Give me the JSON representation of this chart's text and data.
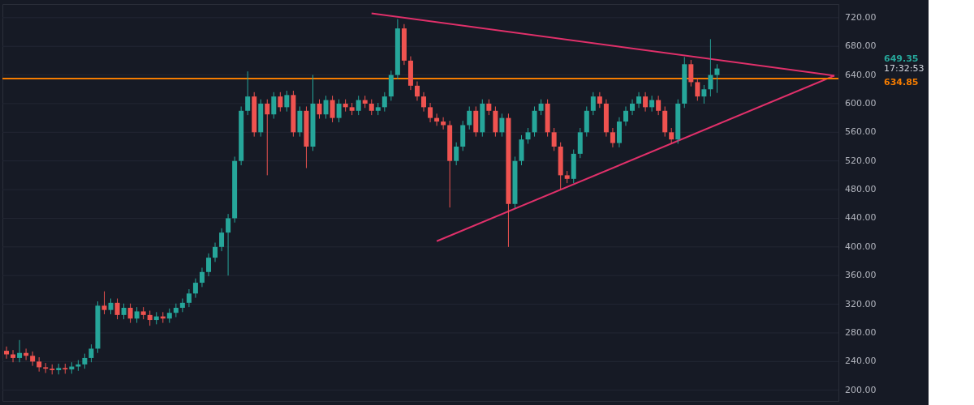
{
  "chart_data": {
    "type": "candlestick",
    "categories": [
      null,
      null,
      null,
      null,
      null,
      null,
      null,
      null,
      null,
      null,
      null,
      null,
      null,
      null,
      null,
      null,
      null,
      null,
      null,
      null,
      null,
      null,
      null,
      null,
      null,
      null,
      null,
      null,
      null,
      null,
      null,
      null,
      null,
      null,
      null,
      null,
      null,
      null,
      null,
      null,
      null,
      null,
      null,
      null,
      null,
      null,
      null,
      null,
      null,
      null,
      null,
      null,
      null,
      null,
      null,
      null,
      null,
      null,
      null,
      null,
      null,
      null,
      null,
      null,
      null,
      null,
      null,
      null,
      null,
      null,
      null,
      null,
      null,
      null,
      null,
      null,
      null,
      null,
      null,
      null,
      null,
      null,
      null,
      null,
      null,
      null,
      null,
      null,
      null,
      null,
      null,
      null,
      null,
      null,
      null,
      null,
      null,
      null,
      null,
      null,
      null,
      null,
      null,
      null,
      null,
      null,
      null,
      null,
      null,
      null,
      null,
      null,
      null,
      null,
      null,
      null,
      null,
      null,
      null,
      null,
      null,
      null,
      null,
      null,
      null,
      null,
      null,
      null
    ],
    "ohlc": [
      [
        255,
        261,
        244,
        250
      ],
      [
        250,
        256,
        239,
        245
      ],
      [
        245,
        270,
        239,
        252
      ],
      [
        252,
        258,
        242,
        248
      ],
      [
        248,
        254,
        234,
        240
      ],
      [
        240,
        246,
        226,
        232
      ],
      [
        232,
        238,
        224,
        230
      ],
      [
        230,
        236,
        222,
        228
      ],
      [
        228,
        237,
        222,
        231
      ],
      [
        231,
        237,
        223,
        229
      ],
      [
        229,
        239,
        223,
        233
      ],
      [
        233,
        242,
        227,
        236
      ],
      [
        236,
        251,
        230,
        245
      ],
      [
        245,
        264,
        239,
        258
      ],
      [
        258,
        324,
        252,
        318
      ],
      [
        318,
        338,
        306,
        312
      ],
      [
        312,
        328,
        306,
        322
      ],
      [
        322,
        328,
        299,
        305
      ],
      [
        305,
        321,
        299,
        315
      ],
      [
        315,
        321,
        294,
        300
      ],
      [
        300,
        316,
        294,
        310
      ],
      [
        310,
        316,
        299,
        305
      ],
      [
        305,
        311,
        290,
        298
      ],
      [
        298,
        309,
        292,
        303
      ],
      [
        303,
        309,
        294,
        300
      ],
      [
        300,
        314,
        294,
        308
      ],
      [
        308,
        321,
        302,
        315
      ],
      [
        315,
        328,
        309,
        322
      ],
      [
        322,
        341,
        316,
        335
      ],
      [
        335,
        356,
        329,
        350
      ],
      [
        350,
        371,
        344,
        365
      ],
      [
        365,
        391,
        359,
        385
      ],
      [
        385,
        406,
        379,
        400
      ],
      [
        400,
        426,
        394,
        420
      ],
      [
        420,
        446,
        360,
        440
      ],
      [
        440,
        526,
        434,
        520
      ],
      [
        520,
        596,
        514,
        590
      ],
      [
        590,
        645,
        584,
        610
      ],
      [
        610,
        616,
        554,
        560
      ],
      [
        560,
        606,
        554,
        600
      ],
      [
        600,
        606,
        500,
        585
      ],
      [
        585,
        616,
        579,
        610
      ],
      [
        610,
        616,
        589,
        595
      ],
      [
        595,
        618,
        589,
        612
      ],
      [
        612,
        618,
        554,
        560
      ],
      [
        560,
        596,
        554,
        590
      ],
      [
        590,
        596,
        510,
        540
      ],
      [
        540,
        640,
        534,
        600
      ],
      [
        600,
        606,
        579,
        585
      ],
      [
        585,
        611,
        579,
        605
      ],
      [
        605,
        611,
        574,
        580
      ],
      [
        580,
        606,
        574,
        600
      ],
      [
        600,
        606,
        589,
        595
      ],
      [
        595,
        601,
        584,
        590
      ],
      [
        590,
        611,
        584,
        605
      ],
      [
        605,
        611,
        594,
        600
      ],
      [
        600,
        606,
        584,
        590
      ],
      [
        590,
        601,
        584,
        595
      ],
      [
        595,
        616,
        589,
        610
      ],
      [
        610,
        646,
        604,
        640
      ],
      [
        640,
        718,
        634,
        705
      ],
      [
        705,
        711,
        654,
        660
      ],
      [
        660,
        666,
        619,
        625
      ],
      [
        625,
        631,
        604,
        610
      ],
      [
        610,
        616,
        589,
        595
      ],
      [
        595,
        601,
        574,
        580
      ],
      [
        580,
        586,
        569,
        575
      ],
      [
        575,
        581,
        564,
        570
      ],
      [
        570,
        576,
        455,
        520
      ],
      [
        520,
        546,
        514,
        540
      ],
      [
        540,
        576,
        534,
        570
      ],
      [
        570,
        596,
        564,
        590
      ],
      [
        590,
        596,
        554,
        560
      ],
      [
        560,
        606,
        554,
        600
      ],
      [
        600,
        606,
        584,
        590
      ],
      [
        590,
        596,
        554,
        560
      ],
      [
        560,
        586,
        554,
        580
      ],
      [
        580,
        586,
        400,
        460
      ],
      [
        460,
        526,
        454,
        520
      ],
      [
        520,
        556,
        514,
        550
      ],
      [
        550,
        566,
        544,
        560
      ],
      [
        560,
        596,
        554,
        590
      ],
      [
        590,
        606,
        584,
        600
      ],
      [
        600,
        606,
        554,
        560
      ],
      [
        560,
        566,
        534,
        540
      ],
      [
        540,
        546,
        480,
        500
      ],
      [
        500,
        506,
        489,
        495
      ],
      [
        495,
        536,
        489,
        530
      ],
      [
        530,
        566,
        524,
        560
      ],
      [
        560,
        596,
        554,
        590
      ],
      [
        590,
        616,
        584,
        610
      ],
      [
        610,
        616,
        594,
        600
      ],
      [
        600,
        606,
        554,
        560
      ],
      [
        560,
        566,
        539,
        545
      ],
      [
        545,
        581,
        539,
        575
      ],
      [
        575,
        596,
        569,
        590
      ],
      [
        590,
        606,
        584,
        600
      ],
      [
        600,
        616,
        594,
        610
      ],
      [
        610,
        616,
        589,
        595
      ],
      [
        595,
        611,
        589,
        605
      ],
      [
        605,
        611,
        584,
        590
      ],
      [
        590,
        596,
        554,
        560
      ],
      [
        560,
        566,
        544,
        550
      ],
      [
        550,
        606,
        544,
        600
      ],
      [
        600,
        665,
        594,
        655
      ],
      [
        655,
        661,
        624,
        630
      ],
      [
        630,
        636,
        604,
        610
      ],
      [
        610,
        626,
        600,
        620
      ],
      [
        620,
        690,
        610,
        640
      ],
      [
        640,
        655,
        615,
        649
      ],
      null,
      null,
      null,
      null,
      null,
      null,
      null,
      null,
      null,
      null,
      null,
      null,
      null,
      null,
      null,
      null,
      null,
      null
    ],
    "colors": [
      "#ef5350",
      "#ef5350",
      "#26a69a",
      "#ef5350",
      "#ef5350",
      "#ef5350",
      "#ef5350",
      "#ef5350",
      "#26a69a",
      "#ef5350",
      "#26a69a",
      "#26a69a",
      "#26a69a",
      "#26a69a",
      "#26a69a",
      "#ef5350",
      "#26a69a",
      "#ef5350",
      "#26a69a",
      "#ef5350",
      "#26a69a",
      "#ef5350",
      "#ef5350",
      "#26a69a",
      "#ef5350",
      "#26a69a",
      "#26a69a",
      "#26a69a",
      "#26a69a",
      "#26a69a",
      "#26a69a",
      "#26a69a",
      "#26a69a",
      "#26a69a",
      "#26a69a",
      "#26a69a",
      "#26a69a",
      "#26a69a",
      "#ef5350",
      "#26a69a",
      "#ef5350",
      "#26a69a",
      "#ef5350",
      "#26a69a",
      "#ef5350",
      "#26a69a",
      "#ef5350",
      "#26a69a",
      "#ef5350",
      "#26a69a",
      "#ef5350",
      "#26a69a",
      "#ef5350",
      "#ef5350",
      "#26a69a",
      "#ef5350",
      "#ef5350",
      "#26a69a",
      "#26a69a",
      "#26a69a",
      "#26a69a",
      "#ef5350",
      "#ef5350",
      "#ef5350",
      "#ef5350",
      "#ef5350",
      "#ef5350",
      "#ef5350",
      "#ef5350",
      "#26a69a",
      "#26a69a",
      "#26a69a",
      "#ef5350",
      "#26a69a",
      "#ef5350",
      "#ef5350",
      "#26a69a",
      "#ef5350",
      "#26a69a",
      "#26a69a",
      "#26a69a",
      "#26a69a",
      "#26a69a",
      "#ef5350",
      "#ef5350",
      "#ef5350",
      "#ef5350",
      "#26a69a",
      "#26a69a",
      "#26a69a",
      "#26a69a",
      "#ef5350",
      "#ef5350",
      "#ef5350",
      "#26a69a",
      "#26a69a",
      "#26a69a",
      "#26a69a",
      "#ef5350",
      "#26a69a",
      "#ef5350",
      "#ef5350",
      "#ef5350",
      "#26a69a",
      "#26a69a",
      "#ef5350",
      "#ef5350",
      "#26a69a",
      "#26a69a",
      "#26a69a",
      null,
      null,
      null,
      null,
      null,
      null,
      null,
      null,
      null,
      null,
      null,
      null,
      null,
      null,
      null,
      null,
      null,
      null
    ],
    "series": [
      {
        "type": "line",
        "color": "#e0306a",
        "values": [
          null,
          null,
          null,
          null,
          null,
          null,
          null,
          null,
          null,
          null,
          null,
          null,
          null,
          null,
          null,
          null,
          null,
          null,
          null,
          null,
          null,
          null,
          null,
          null,
          null,
          null,
          null,
          null,
          null,
          null,
          null,
          null,
          null,
          null,
          null,
          null,
          null,
          null,
          null,
          null,
          null,
          null,
          null,
          null,
          null,
          null,
          null,
          null,
          null,
          null,
          null,
          null,
          null,
          null,
          null,
          null,
          726,
          null,
          null,
          null,
          null,
          null,
          null,
          null,
          null,
          null,
          null,
          null,
          null,
          null,
          null,
          null,
          null,
          null,
          null,
          null,
          null,
          null,
          null,
          null,
          null,
          null,
          null,
          null,
          null,
          null,
          null,
          null,
          null,
          null,
          null,
          null,
          null,
          null,
          null,
          null,
          null,
          null,
          null,
          null,
          null,
          null,
          null,
          null,
          null,
          null,
          null,
          null,
          null,
          null,
          null,
          null,
          null,
          null,
          null,
          null,
          null,
          null,
          null,
          null,
          null,
          null,
          null,
          null,
          null,
          null,
          null,
          639
        ]
      },
      {
        "type": "line",
        "color": "#e0306a",
        "values": [
          null,
          null,
          null,
          null,
          null,
          null,
          null,
          null,
          null,
          null,
          null,
          null,
          null,
          null,
          null,
          null,
          null,
          null,
          null,
          null,
          null,
          null,
          null,
          null,
          null,
          null,
          null,
          null,
          null,
          null,
          null,
          null,
          null,
          null,
          null,
          null,
          null,
          null,
          null,
          null,
          null,
          null,
          null,
          null,
          null,
          null,
          null,
          null,
          null,
          null,
          null,
          null,
          null,
          null,
          null,
          null,
          null,
          null,
          null,
          null,
          null,
          null,
          null,
          null,
          null,
          null,
          408,
          null,
          null,
          null,
          null,
          null,
          null,
          null,
          null,
          null,
          null,
          null,
          null,
          null,
          null,
          null,
          null,
          null,
          null,
          null,
          null,
          null,
          null,
          null,
          null,
          null,
          null,
          null,
          null,
          null,
          null,
          null,
          null,
          null,
          null,
          null,
          null,
          null,
          null,
          null,
          null,
          null,
          null,
          null,
          null,
          null,
          null,
          null,
          null,
          null,
          null,
          null,
          null,
          null,
          null,
          null,
          null,
          null,
          null,
          null,
          null,
          639
        ]
      }
    ],
    "ref_lines": [
      {
        "axis": "y",
        "value": 634.85,
        "label": "634.85",
        "color": "#f57c00"
      }
    ],
    "annotations": [
      "649.35",
      "17:32:53"
    ],
    "ylim": [
      185,
      739
    ],
    "yticks": [
      {
        "value": 200,
        "label": "200.00"
      },
      {
        "value": 240,
        "label": "240.00"
      },
      {
        "value": 280,
        "label": "280.00"
      },
      {
        "value": 320,
        "label": "320.00"
      },
      {
        "value": 360,
        "label": "360.00"
      },
      {
        "value": 400,
        "label": "400.00"
      },
      {
        "value": 440,
        "label": "440.00"
      },
      {
        "value": 480,
        "label": "480.00"
      },
      {
        "value": 520,
        "label": "520.00"
      },
      {
        "value": 560,
        "label": "560.00"
      },
      {
        "value": 600,
        "label": "600.00"
      },
      {
        "value": 640,
        "label": "640.00"
      },
      {
        "value": 680,
        "label": "680.00"
      },
      {
        "value": 720,
        "label": "720.00"
      }
    ],
    "tick_labels": "y",
    "grid": "y"
  }
}
